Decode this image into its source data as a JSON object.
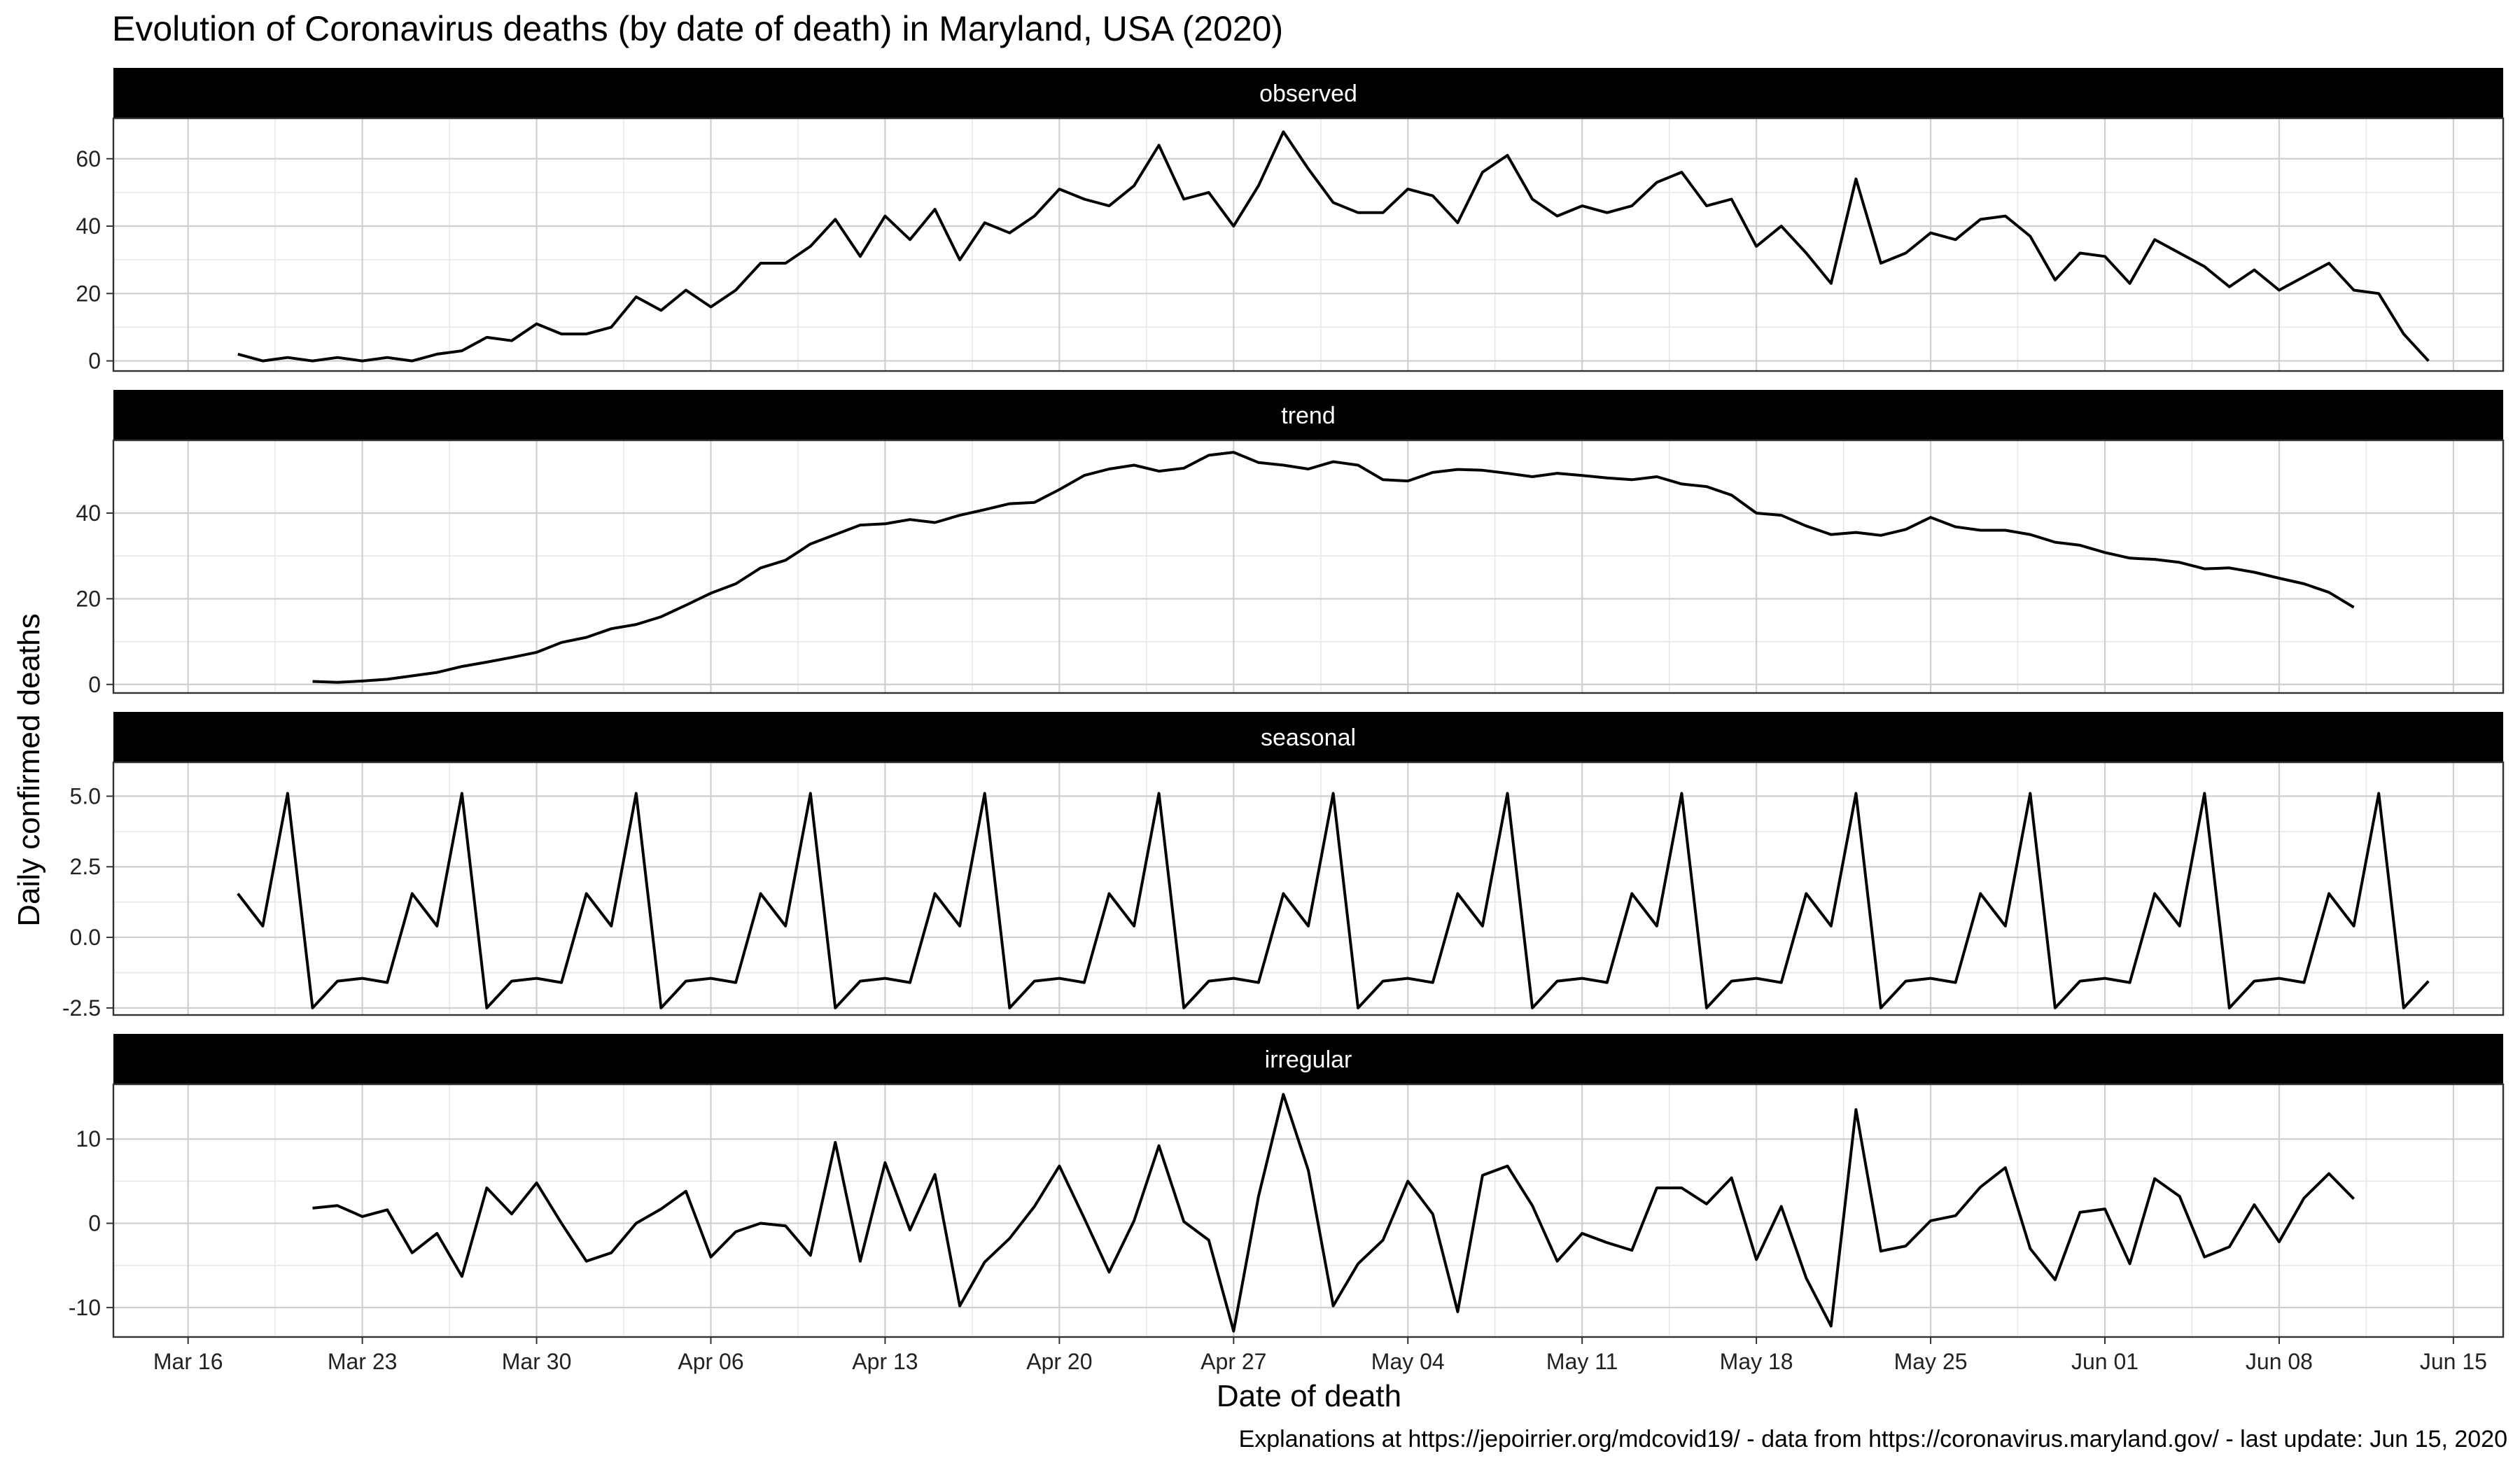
{
  "chart_data": {
    "type": "line",
    "title": "Evolution of Coronavirus deaths (by date of death) in Maryland, USA (2020)",
    "xlabel": "Date of death",
    "ylabel": "Daily confirmed deaths",
    "caption": "Explanations at https://jepoirrier.org/mdcovid19/ - data from https://coronavirus.maryland.gov/ - last update: Jun 15, 2020",
    "grid": true,
    "x_axis": {
      "range": [
        "2020-03-13",
        "2020-06-17"
      ],
      "ticks": [
        {
          "date": "2020-03-16",
          "label": "Mar 16"
        },
        {
          "date": "2020-03-23",
          "label": "Mar 23"
        },
        {
          "date": "2020-03-30",
          "label": "Mar 30"
        },
        {
          "date": "2020-04-06",
          "label": "Apr 06"
        },
        {
          "date": "2020-04-13",
          "label": "Apr 13"
        },
        {
          "date": "2020-04-20",
          "label": "Apr 20"
        },
        {
          "date": "2020-04-27",
          "label": "Apr 27"
        },
        {
          "date": "2020-05-04",
          "label": "May 04"
        },
        {
          "date": "2020-05-11",
          "label": "May 11"
        },
        {
          "date": "2020-05-18",
          "label": "May 18"
        },
        {
          "date": "2020-05-25",
          "label": "May 25"
        },
        {
          "date": "2020-06-01",
          "label": "Jun 01"
        },
        {
          "date": "2020-06-08",
          "label": "Jun 08"
        },
        {
          "date": "2020-06-15",
          "label": "Jun 15"
        }
      ]
    },
    "panels": [
      {
        "name": "observed",
        "start_date": "2020-03-18",
        "ylim": [
          -3,
          72
        ],
        "yticks": [
          0,
          20,
          40,
          60
        ],
        "ytick_labels": [
          "0",
          "20",
          "40",
          "60"
        ],
        "values": [
          2,
          0,
          1,
          0,
          1,
          0,
          1,
          0,
          2,
          3,
          7,
          6,
          11,
          8,
          8,
          10,
          19,
          15,
          21,
          16,
          21,
          29,
          29,
          34,
          42,
          31,
          43,
          36,
          45,
          30,
          41,
          38,
          43,
          51,
          48,
          46,
          52,
          64,
          48,
          50,
          40,
          52,
          68,
          57,
          47,
          44,
          44,
          51,
          49,
          41,
          56,
          61,
          48,
          43,
          46,
          44,
          46,
          53,
          56,
          46,
          48,
          34,
          40,
          32,
          23,
          54,
          29,
          32,
          38,
          36,
          42,
          43,
          37,
          24,
          32,
          31,
          23,
          36,
          32,
          28,
          22,
          27,
          21,
          25,
          29,
          21,
          20,
          8,
          0
        ]
      },
      {
        "name": "trend",
        "start_date": "2020-03-21",
        "ylim": [
          -2,
          57
        ],
        "yticks": [
          0,
          20,
          40
        ],
        "ytick_labels": [
          "0",
          "20",
          "40"
        ],
        "values": [
          0.7,
          0.5,
          0.8,
          1.2,
          2.0,
          2.8,
          4.2,
          5.2,
          6.3,
          7.5,
          9.8,
          11.0,
          13.0,
          14.0,
          15.8,
          18.5,
          21.3,
          23.5,
          27.2,
          29.0,
          32.8,
          35.0,
          37.2,
          37.5,
          38.5,
          37.8,
          39.5,
          40.8,
          42.2,
          42.5,
          45.5,
          48.8,
          50.3,
          51.2,
          49.8,
          50.5,
          53.5,
          54.2,
          51.8,
          51.2,
          50.3,
          52.0,
          51.2,
          47.8,
          47.5,
          49.5,
          50.2,
          50.0,
          49.3,
          48.5,
          49.3,
          48.8,
          48.2,
          47.8,
          48.5,
          46.8,
          46.2,
          44.2,
          40.0,
          39.5,
          37.0,
          35.0,
          35.5,
          34.8,
          36.2,
          39.0,
          36.8,
          36.0,
          36.0,
          35.0,
          33.2,
          32.5,
          30.8,
          29.5,
          29.2,
          28.5,
          27.0,
          27.2,
          26.2,
          24.8,
          23.5,
          21.5,
          18.0
        ]
      },
      {
        "name": "seasonal",
        "start_date": "2020-03-18",
        "ylim": [
          -2.75,
          6.2
        ],
        "yticks": [
          -2.5,
          0,
          2.5,
          5
        ],
        "ytick_labels": [
          "-2.5",
          "0.0",
          "2.5",
          "5.0"
        ],
        "values": [
          1.55,
          0.4,
          5.1,
          -2.5,
          -1.55,
          -1.45,
          -1.6,
          1.55,
          0.4,
          5.1,
          -2.5,
          -1.55,
          -1.45,
          -1.6,
          1.55,
          0.4,
          5.1,
          -2.5,
          -1.55,
          -1.45,
          -1.6,
          1.55,
          0.4,
          5.1,
          -2.5,
          -1.55,
          -1.45,
          -1.6,
          1.55,
          0.4,
          5.1,
          -2.5,
          -1.55,
          -1.45,
          -1.6,
          1.55,
          0.4,
          5.1,
          -2.5,
          -1.55,
          -1.45,
          -1.6,
          1.55,
          0.4,
          5.1,
          -2.5,
          -1.55,
          -1.45,
          -1.6,
          1.55,
          0.4,
          5.1,
          -2.5,
          -1.55,
          -1.45,
          -1.6,
          1.55,
          0.4,
          5.1,
          -2.5,
          -1.55,
          -1.45,
          -1.6,
          1.55,
          0.4,
          5.1,
          -2.5,
          -1.55,
          -1.45,
          -1.6,
          1.55,
          0.4,
          5.1,
          -2.5,
          -1.55,
          -1.45,
          -1.6,
          1.55,
          0.4,
          5.1,
          -2.5,
          -1.55,
          -1.45,
          -1.6,
          1.55,
          0.4,
          5.1,
          -2.5,
          -1.55
        ]
      },
      {
        "name": "irregular",
        "start_date": "2020-03-21",
        "ylim": [
          -13.5,
          16.5
        ],
        "yticks": [
          -10,
          0,
          10
        ],
        "ytick_labels": [
          "-10",
          "0",
          "10"
        ],
        "values": [
          1.8,
          2.1,
          0.8,
          1.6,
          -3.5,
          -1.2,
          -6.3,
          4.2,
          1.1,
          4.8,
          0.0,
          -4.5,
          -3.5,
          0.0,
          1.7,
          3.8,
          -4.0,
          -1.0,
          0.0,
          -0.3,
          -3.8,
          9.6,
          -4.5,
          7.2,
          -0.8,
          5.8,
          -9.8,
          -4.6,
          -1.8,
          2.0,
          6.8,
          0.6,
          -5.8,
          0.3,
          9.2,
          0.2,
          -2.0,
          -12.8,
          3.2,
          15.3,
          6.3,
          -9.8,
          -4.8,
          -2.0,
          5.0,
          1.1,
          -10.5,
          5.7,
          6.8,
          2.1,
          -4.5,
          -1.2,
          -2.3,
          -3.2,
          4.2,
          4.2,
          2.3,
          5.4,
          -4.3,
          2.0,
          -6.5,
          -12.2,
          13.5,
          -3.3,
          -2.7,
          0.3,
          0.9,
          4.3,
          6.6,
          -3.0,
          -6.7,
          1.3,
          1.7,
          -4.8,
          5.3,
          3.2,
          -4.0,
          -2.8,
          2.2,
          -2.2,
          3.0,
          5.9,
          2.9
        ]
      }
    ]
  }
}
